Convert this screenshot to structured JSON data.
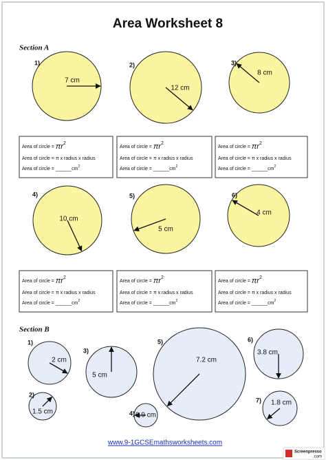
{
  "header": {
    "title": "Area Worksheet 8"
  },
  "section_a": {
    "heading": "Section A",
    "problems": [
      {
        "number": "1)",
        "label": "7 cm"
      },
      {
        "number": "2)",
        "label": "12 cm"
      },
      {
        "number": "3)",
        "label": "8 cm"
      },
      {
        "number": "4)",
        "label": "10 cm"
      },
      {
        "number": "5)",
        "label": "5 cm"
      },
      {
        "number": "6)",
        "label": "4 cm"
      }
    ]
  },
  "formula_box": {
    "line1_text": "Area of circle =",
    "line1_formula": "πr",
    "line1_power": "2",
    "line2": "Area of circle = π x radius x radius",
    "line3": "Area of circle = ______cm",
    "line3_power": "2"
  },
  "section_b": {
    "heading": "Section B",
    "problems": [
      {
        "number": "1)",
        "label": "2 cm"
      },
      {
        "number": "2)",
        "label": "1.5 cm"
      },
      {
        "number": "3)",
        "label": "5 cm"
      },
      {
        "number": "4)",
        "label": "0.9 cm"
      },
      {
        "number": "5)",
        "label": "7.2 cm"
      },
      {
        "number": "6)",
        "label": "3.8 cm"
      },
      {
        "number": "7)",
        "label": "1.8 cm"
      }
    ]
  },
  "footer": {
    "url": "www.9-1GCSEmathsworksheets.com"
  },
  "watermark": {
    "line1": "Screenpresso",
    "line2": ".com"
  }
}
